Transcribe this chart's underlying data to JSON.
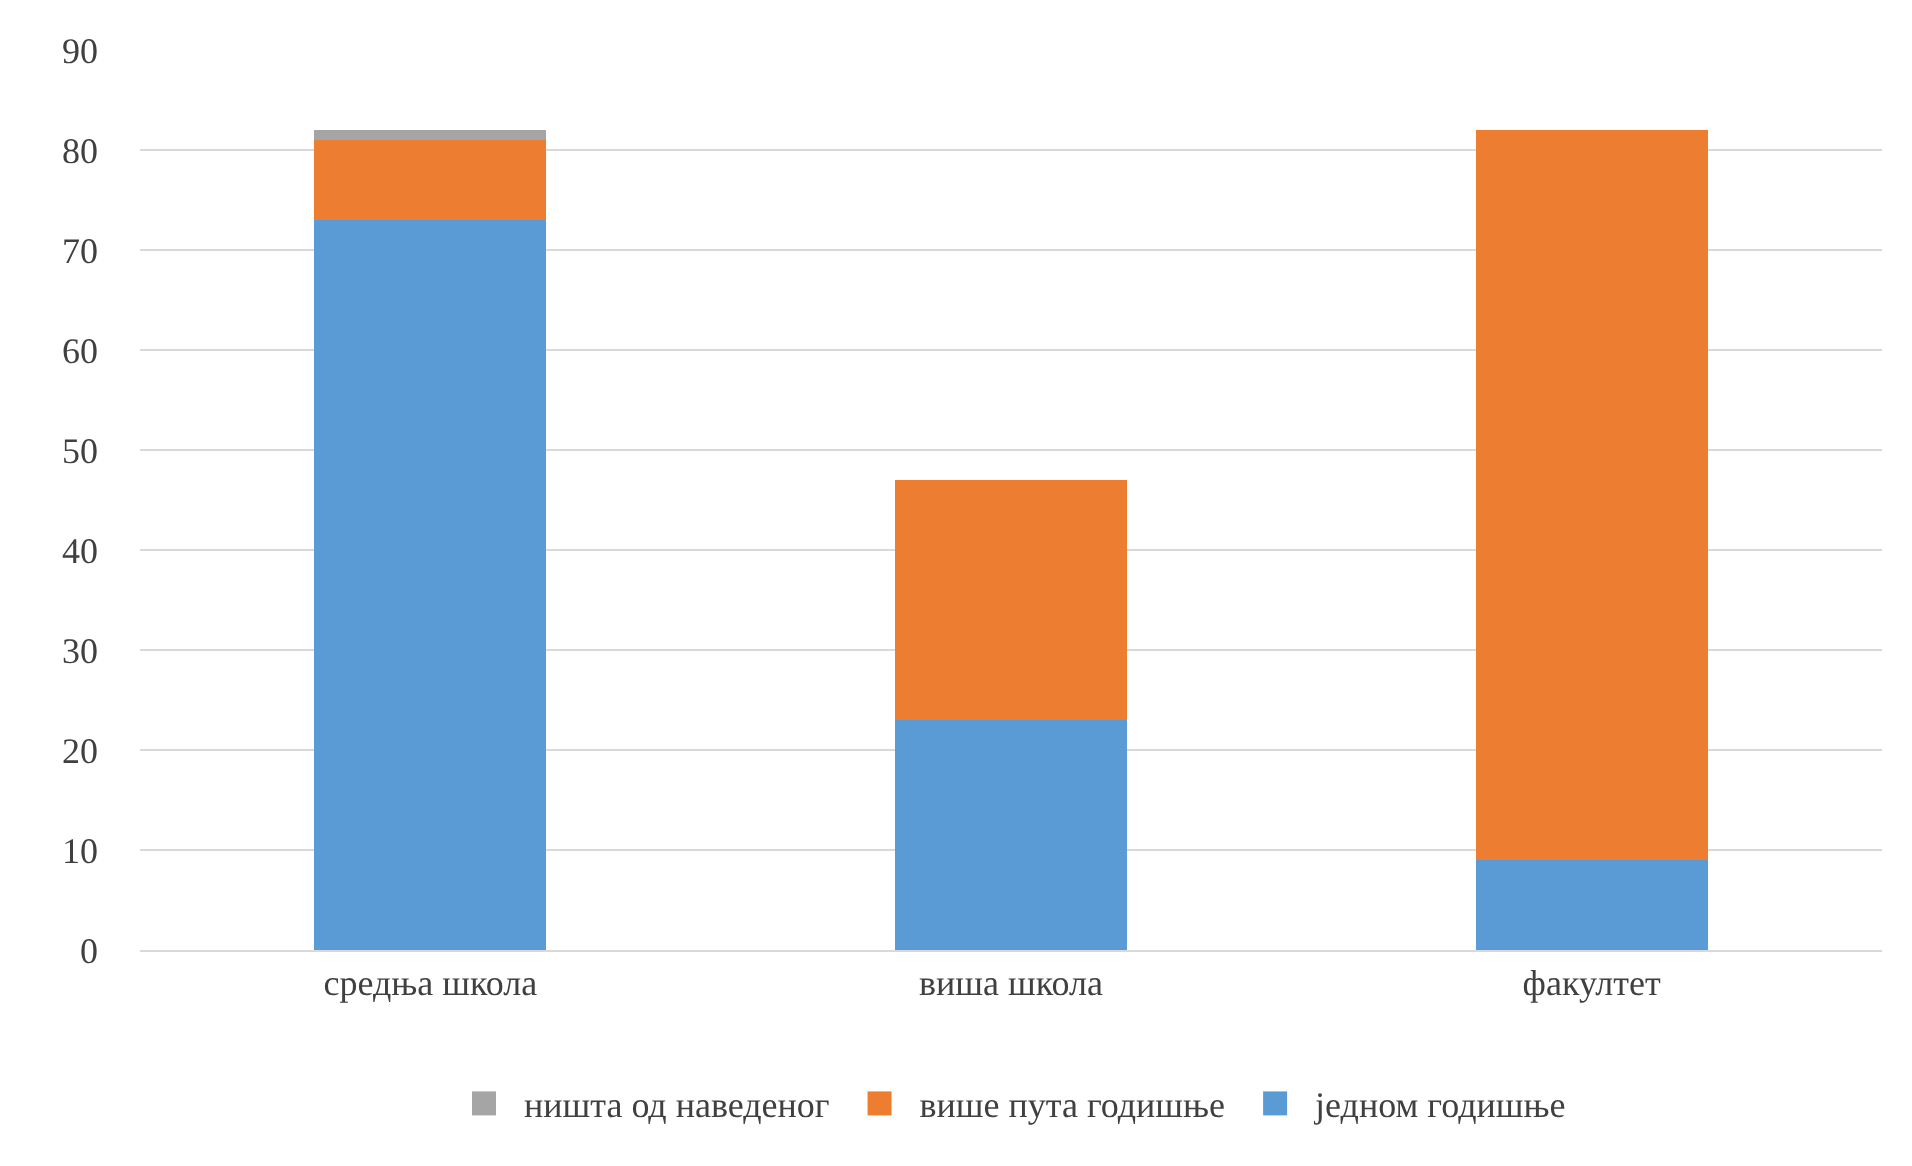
{
  "chart_data": {
    "type": "bar",
    "stacked": true,
    "categories": [
      "средња школа",
      "виша школа",
      "факултет"
    ],
    "series": [
      {
        "name": "једном годишње",
        "color": "#5b9bd5",
        "values": [
          73,
          23,
          9
        ]
      },
      {
        "name": "више пута годишње",
        "color": "#ed7d31",
        "values": [
          8,
          24,
          73
        ]
      },
      {
        "name": "ништа од наведеног",
        "color": "#a5a5a5",
        "values": [
          1,
          0,
          0
        ]
      }
    ],
    "ylim": [
      0,
      90
    ],
    "yticks": [
      0,
      10,
      20,
      30,
      40,
      50,
      60,
      70,
      80,
      90
    ],
    "grid": "y",
    "legend": "bottom"
  }
}
